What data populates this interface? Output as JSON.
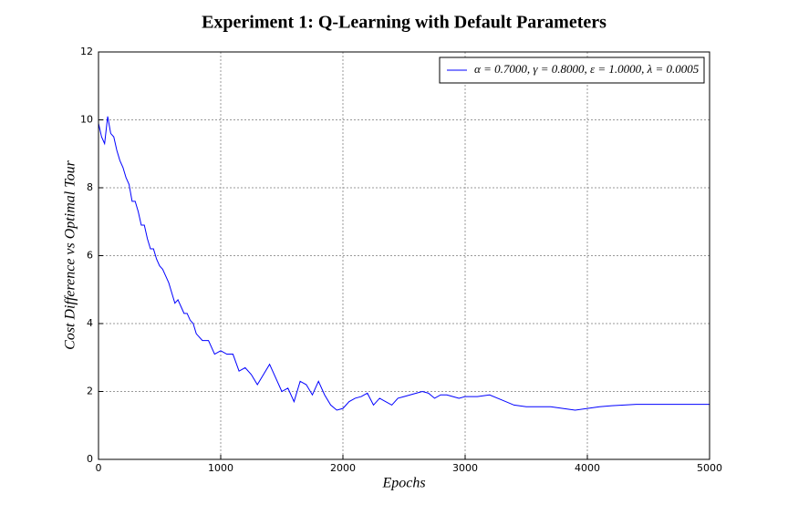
{
  "chart_data": {
    "type": "line",
    "title": "Experiment 1: Q-Learning with Default Parameters",
    "x_label": "Epochs",
    "y_label": "Cost Difference vs Optimal Tour",
    "xlim": [
      0,
      5000
    ],
    "ylim": [
      0,
      12
    ],
    "xticks": [
      0,
      1000,
      2000,
      3000,
      4000,
      5000
    ],
    "yticks": [
      0,
      2,
      4,
      6,
      8,
      10,
      12
    ],
    "grid": true,
    "legend_position": "upper right",
    "x": [
      0,
      25,
      50,
      75,
      100,
      125,
      150,
      175,
      200,
      225,
      250,
      275,
      300,
      325,
      350,
      375,
      400,
      425,
      450,
      475,
      500,
      525,
      550,
      575,
      600,
      625,
      650,
      675,
      700,
      725,
      750,
      775,
      800,
      850,
      900,
      925,
      950,
      1000,
      1050,
      1100,
      1150,
      1200,
      1250,
      1300,
      1350,
      1400,
      1450,
      1500,
      1550,
      1600,
      1650,
      1700,
      1750,
      1800,
      1850,
      1900,
      1950,
      2000,
      2050,
      2100,
      2150,
      2200,
      2250,
      2300,
      2350,
      2400,
      2450,
      2500,
      2550,
      2600,
      2650,
      2700,
      2750,
      2800,
      2850,
      2900,
      2950,
      3000,
      3100,
      3200,
      3300,
      3400,
      3500,
      3600,
      3700,
      3800,
      3900,
      4000,
      4100,
      4200,
      4300,
      4400,
      4500,
      5000
    ],
    "series": [
      {
        "name": "α = 0.7000, γ = 0.8000, ε = 1.0000, λ = 0.0005",
        "color": "#0000ff",
        "values": [
          9.9,
          9.5,
          9.3,
          10.1,
          9.6,
          9.5,
          9.1,
          8.8,
          8.6,
          8.3,
          8.1,
          7.6,
          7.6,
          7.3,
          6.9,
          6.9,
          6.5,
          6.2,
          6.2,
          5.9,
          5.7,
          5.6,
          5.4,
          5.2,
          4.9,
          4.6,
          4.7,
          4.5,
          4.3,
          4.3,
          4.1,
          4.0,
          3.7,
          3.5,
          3.5,
          3.3,
          3.1,
          3.2,
          3.1,
          3.1,
          2.6,
          2.7,
          2.5,
          2.2,
          2.5,
          2.8,
          2.4,
          2.0,
          2.1,
          1.7,
          2.3,
          2.2,
          1.9,
          2.3,
          1.9,
          1.6,
          1.45,
          1.5,
          1.7,
          1.8,
          1.85,
          1.95,
          1.6,
          1.8,
          1.7,
          1.6,
          1.8,
          1.85,
          1.9,
          1.95,
          2.0,
          1.95,
          1.8,
          1.9,
          1.9,
          1.85,
          1.8,
          1.85,
          1.85,
          1.9,
          1.75,
          1.6,
          1.55,
          1.55,
          1.55,
          1.5,
          1.45,
          1.5,
          1.55,
          1.58,
          1.6,
          1.62,
          1.62,
          1.62
        ]
      }
    ]
  }
}
